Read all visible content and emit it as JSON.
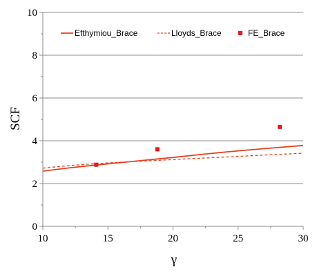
{
  "chart_data": {
    "type": "line",
    "title": "",
    "xlabel": "γ",
    "ylabel": "SCF",
    "xlim": [
      10,
      30
    ],
    "ylim": [
      0,
      10
    ],
    "x_ticks": [
      "10",
      "15",
      "20",
      "25",
      "30"
    ],
    "y_ticks": [
      "0",
      "2",
      "4",
      "6",
      "8",
      "10"
    ],
    "grid": "horizontal",
    "legend_position": "top",
    "series": [
      {
        "name": "Efthymiou_Brace",
        "style": "solid-line",
        "color": "#e8401c",
        "x": [
          10,
          12,
          14,
          16,
          18,
          20,
          22,
          24,
          26,
          28,
          30
        ],
        "y": [
          2.58,
          2.73,
          2.86,
          2.98,
          3.1,
          3.22,
          3.35,
          3.47,
          3.58,
          3.68,
          3.78
        ]
      },
      {
        "name": "Lloyds_Brace",
        "style": "dashed-line",
        "color": "#e8401c",
        "x": [
          10,
          12,
          14,
          16,
          18,
          20,
          22,
          24,
          26,
          28,
          30
        ],
        "y": [
          2.72,
          2.84,
          2.93,
          3.0,
          3.06,
          3.12,
          3.18,
          3.24,
          3.3,
          3.36,
          3.42
        ]
      },
      {
        "name": "FE_Brace",
        "style": "square-markers",
        "color": "#e8171b",
        "x": [
          14.1,
          18.8,
          28.2
        ],
        "y": [
          2.88,
          3.6,
          4.65
        ]
      }
    ]
  }
}
